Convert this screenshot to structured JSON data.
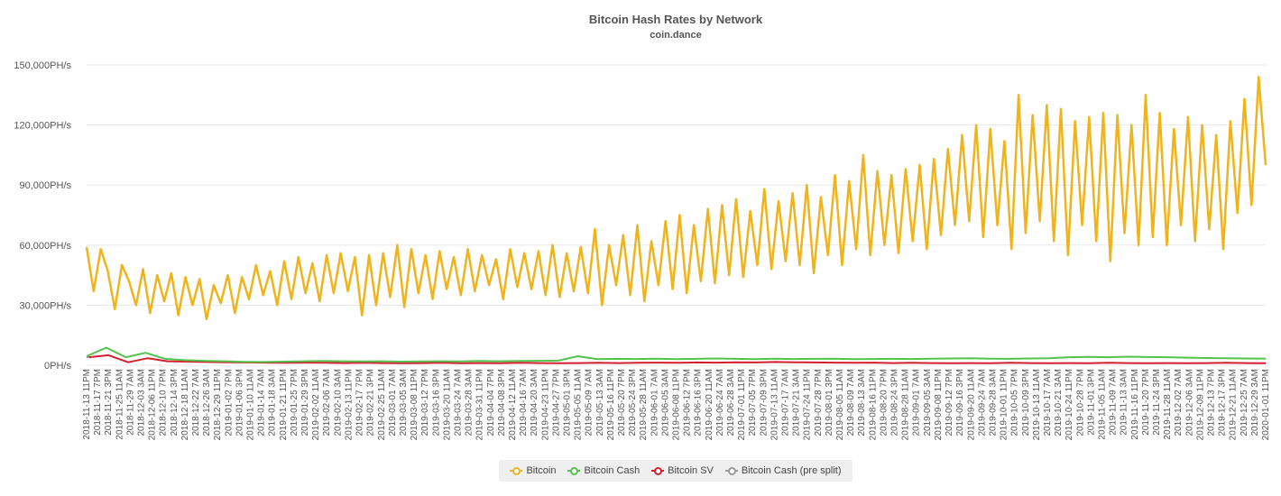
{
  "chart_data": {
    "type": "line",
    "title": "Bitcoin Hash Rates by Network",
    "subtitle": "coin.dance",
    "ylim": [
      0,
      150000
    ],
    "y_ticks": [
      "0PH/s",
      "30,000PH/s",
      "60,000PH/s",
      "90,000PH/s",
      "120,000PH/s",
      "150,000PH/s"
    ],
    "grid": true,
    "legend_position": "bottom",
    "x_labels": [
      "2018-11-13 11PM",
      "2018-11-17 7PM",
      "2018-11-21 3PM",
      "2018-11-25 11AM",
      "2018-11-29 7AM",
      "2018-12-03 3AM",
      "2018-12-06 11PM",
      "2018-12-10 7PM",
      "2018-12-14 3PM",
      "2018-12-18 11AM",
      "2018-12-22 7AM",
      "2018-12-26 3AM",
      "2018-12-29 11PM",
      "2019-01-02 7PM",
      "2019-01-06 3PM",
      "2019-01-10 11AM",
      "2019-01-14 7AM",
      "2019-01-18 3AM",
      "2019-01-21 11PM",
      "2019-01-25 7PM",
      "2019-01-29 3PM",
      "2019-02-02 11AM",
      "2019-02-06 7AM",
      "2019-02-10 3AM",
      "2019-02-13 11PM",
      "2019-02-17 7PM",
      "2019-02-21 3PM",
      "2019-02-25 11AM",
      "2019-03-01 7AM",
      "2019-03-05 3AM",
      "2019-03-08 11PM",
      "2019-03-12 7PM",
      "2019-03-16 3PM",
      "2019-03-20 11AM",
      "2019-03-24 7AM",
      "2019-03-28 3AM",
      "2019-03-31 11PM",
      "2019-04-04 7PM",
      "2019-04-08 3PM",
      "2019-04-12 11AM",
      "2019-04-16 7AM",
      "2019-04-20 3AM",
      "2019-04-23 11PM",
      "2019-04-27 7PM",
      "2019-05-01 3PM",
      "2019-05-05 11AM",
      "2019-05-09 7AM",
      "2019-05-13 3AM",
      "2019-05-16 11PM",
      "2019-05-20 7PM",
      "2019-05-24 3PM",
      "2019-05-28 11AM",
      "2019-06-01 7AM",
      "2019-06-05 3AM",
      "2019-06-08 11PM",
      "2019-06-12 7PM",
      "2019-06-16 3PM",
      "2019-06-20 11AM",
      "2019-06-24 7AM",
      "2019-06-28 3AM",
      "2019-07-01 11PM",
      "2019-07-05 7PM",
      "2019-07-09 3PM",
      "2019-07-13 11AM",
      "2019-07-17 7AM",
      "2019-07-21 3AM",
      "2019-07-24 11PM",
      "2019-07-28 7PM",
      "2019-08-01 3PM",
      "2019-08-05 11AM",
      "2019-08-09 7AM",
      "2019-08-13 3AM",
      "2019-08-16 11PM",
      "2019-08-20 7PM",
      "2019-08-24 3PM",
      "2019-08-28 11AM",
      "2019-09-01 7AM",
      "2019-09-05 3AM",
      "2019-09-08 11PM",
      "2019-09-12 7PM",
      "2019-09-16 3PM",
      "2019-09-20 11AM",
      "2019-09-24 7AM",
      "2019-09-28 3AM",
      "2019-10-01 11PM",
      "2019-10-05 7PM",
      "2019-10-09 3PM",
      "2019-10-13 11AM",
      "2019-10-17 7AM",
      "2019-10-21 3AM",
      "2019-10-24 11PM",
      "2019-10-28 7PM",
      "2019-11-01 3PM",
      "2019-11-05 11AM",
      "2019-11-09 7AM",
      "2019-11-13 3AM",
      "2019-11-16 11PM",
      "2019-11-20 7PM",
      "2019-11-24 3PM",
      "2019-11-28 11AM",
      "2019-12-02 7AM",
      "2019-12-06 3AM",
      "2019-12-09 11PM",
      "2019-12-13 7PM",
      "2019-12-17 3PM",
      "2019-12-21 11AM",
      "2019-12-25 7AM",
      "2019-12-29 3AM",
      "2020-01-01 11PM"
    ],
    "series": [
      {
        "name": "Bitcoin",
        "color": "#f0b31c",
        "values": [
          59000,
          37000,
          58000,
          47000,
          28000,
          50000,
          42000,
          30000,
          48000,
          26000,
          45000,
          32000,
          46000,
          25000,
          44000,
          30000,
          43000,
          23000,
          40000,
          31000,
          45000,
          26000,
          44000,
          33000,
          50000,
          35000,
          47000,
          30000,
          52000,
          33000,
          54000,
          36000,
          51000,
          32000,
          55000,
          36000,
          56000,
          37000,
          54000,
          25000,
          55000,
          30000,
          56000,
          34000,
          60000,
          29000,
          58000,
          36000,
          55000,
          33000,
          57000,
          38000,
          54000,
          35000,
          58000,
          37000,
          55000,
          40000,
          53000,
          33000,
          58000,
          39000,
          56000,
          38000,
          57000,
          35000,
          60000,
          34000,
          56000,
          37000,
          59000,
          36000,
          68000,
          30000,
          60000,
          40000,
          65000,
          35000,
          70000,
          32000,
          62000,
          40000,
          72000,
          38000,
          75000,
          36000,
          70000,
          42000,
          78000,
          41000,
          80000,
          45000,
          83000,
          44000,
          77000,
          50000,
          88000,
          48000,
          82000,
          52000,
          86000,
          50000,
          90000,
          46000,
          84000,
          55000,
          95000,
          50000,
          92000,
          58000,
          105000,
          55000,
          97000,
          60000,
          95000,
          56000,
          98000,
          62000,
          100000,
          58000,
          103000,
          65000,
          108000,
          70000,
          115000,
          72000,
          120000,
          64000,
          118000,
          70000,
          112000,
          58000,
          135000,
          66000,
          125000,
          72000,
          130000,
          62000,
          128000,
          55000,
          122000,
          70000,
          124000,
          62000,
          126000,
          52000,
          125000,
          66000,
          120000,
          60000,
          135000,
          64000,
          126000,
          60000,
          118000,
          70000,
          124000,
          62000,
          120000,
          68000,
          115000,
          58000,
          122000,
          76000,
          133000,
          80000,
          144000,
          100000
        ]
      },
      {
        "name": "Bitcoin Cash",
        "color": "#53c34d",
        "values": [
          4500,
          8800,
          4000,
          6200,
          3200,
          2500,
          2200,
          2000,
          1700,
          1600,
          1800,
          2000,
          2100,
          2000,
          1900,
          2000,
          1800,
          1900,
          2000,
          1900,
          2100,
          2000,
          2100,
          2200,
          2300,
          4500,
          3000,
          3200,
          3100,
          3300,
          3000,
          3200,
          3400,
          3200,
          3000,
          3300,
          3100,
          3200,
          3300,
          3000,
          3100,
          3200,
          3100,
          3300,
          3400,
          3500,
          3300,
          3200,
          3400,
          3500,
          4000,
          4200,
          4000,
          4300,
          4100,
          4000,
          3800,
          3600,
          3500,
          3400,
          3300
        ]
      },
      {
        "name": "Bitcoin SV",
        "color": "#d41f30",
        "values": [
          4000,
          5000,
          1500,
          3500,
          2000,
          1800,
          1600,
          1500,
          1400,
          1300,
          1200,
          1300,
          1200,
          1100,
          1200,
          1100,
          1000,
          1100,
          1200,
          1000,
          1100,
          1000,
          1200,
          1100,
          1000,
          1100,
          1200,
          1100,
          1200,
          1300,
          1200,
          1400,
          1300,
          1500,
          1400,
          1600,
          1500,
          1400,
          1300,
          1200,
          1300,
          1100,
          1200,
          1100,
          1000,
          1100,
          1000,
          1200,
          1100,
          1000,
          1100,
          1000,
          1200,
          1100,
          1000,
          1100,
          1000,
          1100,
          1200,
          1100,
          1000
        ]
      },
      {
        "name": "Bitcoin Cash (pre split)",
        "color": "#9a9a9a",
        "values": [
          3800,
          4200,
          3900
        ]
      }
    ]
  }
}
